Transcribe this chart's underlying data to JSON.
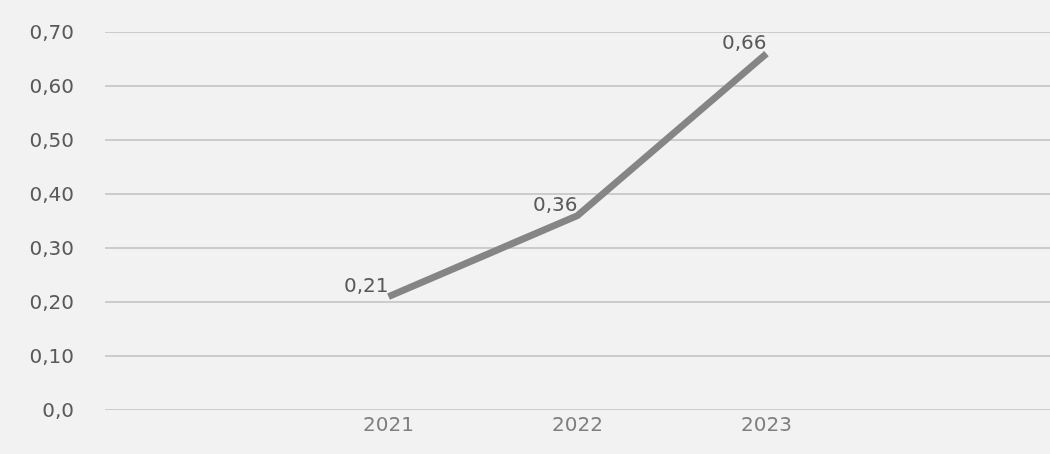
{
  "chart_data": {
    "type": "line",
    "categories": [
      null,
      "2021",
      "2022",
      "2023",
      null
    ],
    "series": [
      {
        "color": "#858585",
        "values": [
          null,
          0.21,
          0.36,
          0.66,
          null
        ],
        "value_labels": [
          null,
          "0,21",
          "0,36",
          "0,66",
          null
        ]
      }
    ],
    "ylim": [
      0,
      0.7
    ],
    "yticks": [
      {
        "value": 0,
        "label": "0,0"
      },
      {
        "value": 0.1,
        "label": "0,10"
      },
      {
        "value": 0.2,
        "label": "0,20"
      },
      {
        "value": 0.3,
        "label": "0,30"
      },
      {
        "value": 0.4,
        "label": "0,40"
      },
      {
        "value": 0.5,
        "label": "0,50"
      },
      {
        "value": 0.6,
        "label": "0,60"
      },
      {
        "value": 0.7,
        "label": "0,70"
      }
    ],
    "grid": "y",
    "marker": "none",
    "line_style": "solid"
  }
}
